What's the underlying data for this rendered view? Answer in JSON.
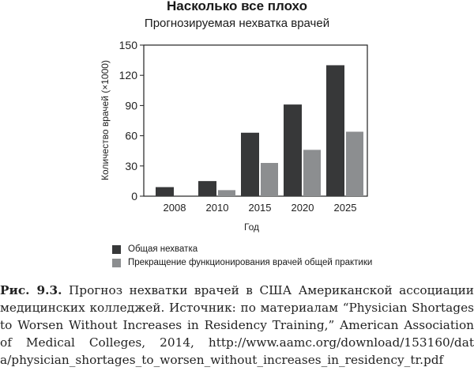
{
  "chart_data": {
    "type": "bar",
    "title": "Насколько все плохо",
    "subtitle": "Прогнозируемая нехватка врачей",
    "xlabel": "Год",
    "ylabel": "Количество врачей (×1000)",
    "ylim": [
      0,
      150
    ],
    "yticks": [
      0,
      30,
      60,
      90,
      120,
      150
    ],
    "categories": [
      "2008",
      "2010",
      "2015",
      "2020",
      "2025"
    ],
    "series": [
      {
        "name": "Общая нехватка",
        "color": "#373839",
        "values": [
          9,
          15,
          63,
          91,
          130
        ]
      },
      {
        "name": "Прекращение функционирования врачей общей практики",
        "color": "#8c8e90",
        "values": [
          0,
          6,
          33,
          46,
          64
        ]
      }
    ],
    "legend_position": "bottom-left"
  },
  "caption": {
    "label": "Рис. 9.3.",
    "lines": [
      " Прогноз нехватки врачей в США Американской ассоциации",
      "медицинских колледжей. Источник: по материалам “Physician Shortages",
      "to Worsen Without Increases in Residency Training,” American Association",
      "of Medical Colleges, 2014, http://www.aamc.org/download/153160/dat",
      "a/physician_shortages_to_worsen_without_increases_in_residency_tr.pdf"
    ]
  }
}
